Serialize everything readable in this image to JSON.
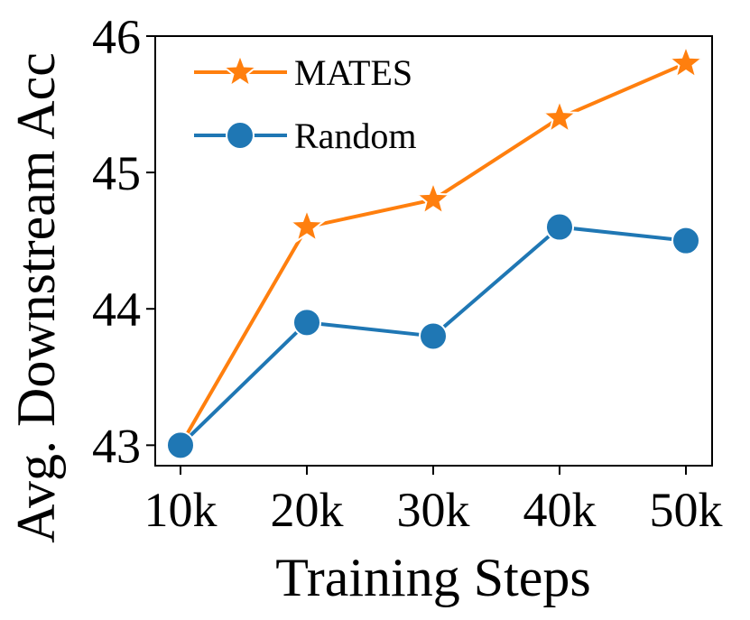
{
  "chart_data": {
    "type": "line",
    "title": "",
    "xlabel": "Training Steps",
    "ylabel": "Avg. Downstream Acc",
    "categories": [
      "10k",
      "20k",
      "30k",
      "40k",
      "50k"
    ],
    "ylim": [
      42.85,
      46.0
    ],
    "yticks": [
      43,
      44,
      45,
      46
    ],
    "ytick_labels": [
      "43",
      "44",
      "45",
      "46"
    ],
    "grid": false,
    "legend_position": "top-left",
    "series": [
      {
        "name": "MATES",
        "color": "#ff7f0e",
        "marker": "star",
        "values": [
          43.0,
          44.6,
          44.8,
          45.4,
          45.8
        ]
      },
      {
        "name": "Random",
        "color": "#1f77b4",
        "marker": "circle",
        "values": [
          43.0,
          43.9,
          43.8,
          44.6,
          44.5
        ]
      }
    ]
  }
}
